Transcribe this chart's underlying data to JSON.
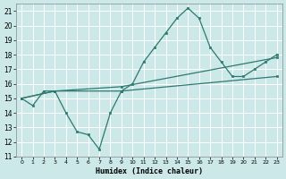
{
  "title": "",
  "xlabel": "Humidex (Indice chaleur)",
  "bg_color": "#cce8e8",
  "grid_color": "#ffffff",
  "line_color": "#2d7a6f",
  "xlim": [
    -0.5,
    23.5
  ],
  "ylim": [
    11,
    21.5
  ],
  "yticks": [
    11,
    12,
    13,
    14,
    15,
    16,
    17,
    18,
    19,
    20,
    21
  ],
  "xticks": [
    0,
    1,
    2,
    3,
    4,
    5,
    6,
    7,
    8,
    9,
    10,
    11,
    12,
    13,
    14,
    15,
    16,
    17,
    18,
    19,
    20,
    21,
    22,
    23
  ],
  "line1_x": [
    0,
    1,
    2,
    3,
    4,
    5,
    6,
    7,
    8,
    9,
    10,
    11,
    12,
    13,
    14,
    15,
    16,
    17,
    18,
    19,
    20,
    21,
    22,
    23
  ],
  "line1_y": [
    15.0,
    14.5,
    15.5,
    15.5,
    14.0,
    12.7,
    12.5,
    11.5,
    14.0,
    15.5,
    16.0,
    17.5,
    18.5,
    19.5,
    20.5,
    21.2,
    20.5,
    18.5,
    17.5,
    16.5,
    16.5,
    17.0,
    17.5,
    18.0
  ],
  "line2_x": [
    0,
    3,
    9,
    23
  ],
  "line2_y": [
    15.0,
    15.5,
    15.8,
    17.8
  ],
  "line3_x": [
    0,
    3,
    9,
    23
  ],
  "line3_y": [
    15.0,
    15.5,
    15.5,
    16.5
  ]
}
